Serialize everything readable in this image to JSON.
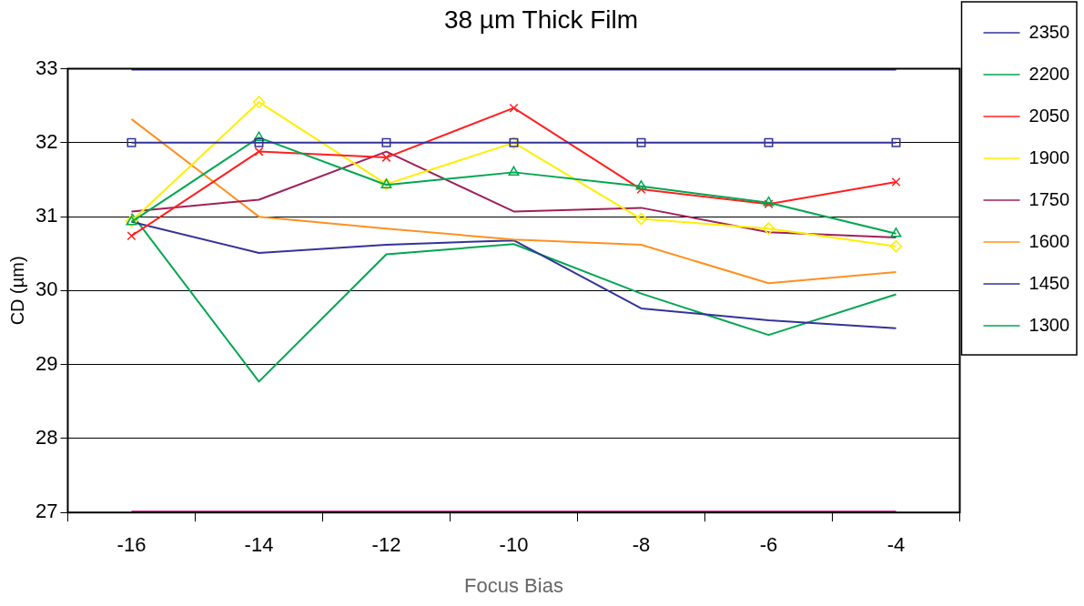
{
  "chart_data": {
    "type": "line",
    "title": "38 µm Thick Film",
    "xlabel": "Focus Bias",
    "ylabel": "CD (µm)",
    "categories": [
      "-16",
      "-14",
      "-12",
      "-10",
      "-8",
      "-6",
      "-4"
    ],
    "series": [
      {
        "name": "2350",
        "color": "#333399",
        "marker": "square",
        "values": [
          32,
          32,
          32,
          32,
          32,
          32,
          32
        ]
      },
      {
        "name": "2200",
        "color": "#00a651",
        "marker": "triangle",
        "values": [
          30.93,
          32.07,
          31.43,
          31.6,
          31.41,
          31.19,
          30.77
        ]
      },
      {
        "name": "2050",
        "color": "#ff2020",
        "marker": "cross",
        "values": [
          30.74,
          31.88,
          31.8,
          32.47,
          31.37,
          31.17,
          31.47
        ]
      },
      {
        "name": "1900",
        "color": "#ffee00",
        "marker": "diamond",
        "values": [
          30.94,
          32.55,
          31.44,
          32.0,
          30.97,
          30.84,
          30.6
        ]
      },
      {
        "name": "1750",
        "color": "#a0205a",
        "values": [
          31.07,
          31.23,
          31.88,
          31.07,
          31.12,
          30.79,
          30.72
        ]
      },
      {
        "name": "1600",
        "color": "#ff9020",
        "values": [
          32.32,
          31.0,
          30.84,
          30.69,
          30.62,
          30.1,
          30.25
        ]
      },
      {
        "name": "1450",
        "color": "#333399",
        "values": [
          30.93,
          30.51,
          30.62,
          30.68,
          29.76,
          29.6,
          29.49
        ]
      },
      {
        "name": "1300",
        "color": "#00a651",
        "values": [
          31.04,
          28.77,
          30.49,
          30.63,
          29.96,
          29.4,
          29.95
        ]
      },
      {
        "color": "#333399",
        "values": [
          33,
          33,
          33,
          33,
          33,
          33,
          33
        ]
      },
      {
        "color": "#cc1188",
        "values": [
          27,
          27,
          27,
          27,
          27,
          27,
          27
        ]
      }
    ],
    "ylim": [
      27,
      33
    ],
    "yticks": [
      27,
      28,
      29,
      30,
      31,
      32,
      33
    ],
    "grid": "y",
    "legend": "right",
    "marker": "none",
    "line_style": "solid"
  }
}
